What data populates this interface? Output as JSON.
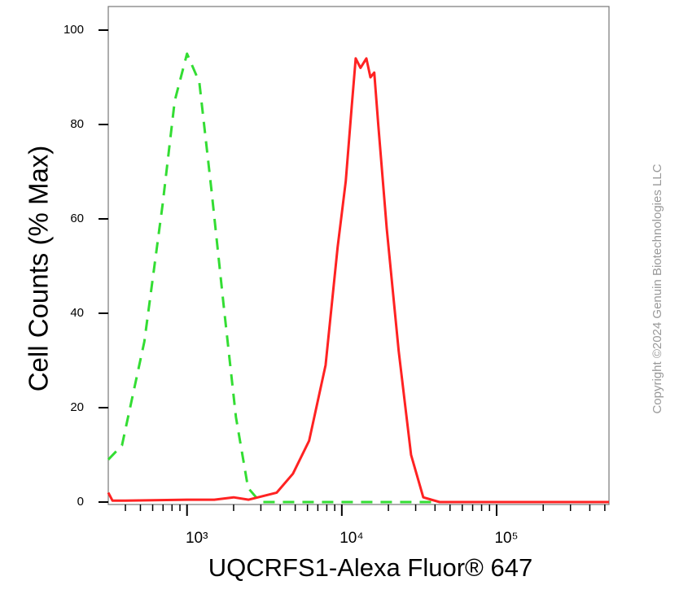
{
  "chart_data": {
    "type": "line",
    "y_label": "Cell Counts (% Max)",
    "x_label": "UQCRFS1-Alexa Fluor® 647",
    "copyright": "Copyright ©2024 Genuin Biotechnologies LLC",
    "x_log": true,
    "xlim": [
      310,
      532000
    ],
    "ylim": [
      0,
      105
    ],
    "xticks": [
      {
        "value": 1000,
        "label": "10³"
      },
      {
        "value": 10000,
        "label": "10⁴"
      },
      {
        "value": 100000,
        "label": "10⁵"
      }
    ],
    "x_minor_ticks": [
      400,
      500,
      600,
      700,
      800,
      900,
      2000,
      3000,
      4000,
      5000,
      6000,
      7000,
      8000,
      9000,
      20000,
      30000,
      40000,
      50000,
      60000,
      70000,
      80000,
      90000,
      200000,
      300000,
      400000,
      500000
    ],
    "yticks": [
      0,
      20,
      40,
      60,
      80,
      100
    ],
    "series": [
      {
        "color": "#33dd33",
        "dashed": true,
        "x": [
          310,
          380,
          530,
          695,
          833,
          1000,
          1200,
          1440,
          1720,
          2070,
          2480,
          2970,
          532000
        ],
        "values": [
          9,
          12,
          34,
          63,
          85,
          95,
          89,
          66,
          42,
          18,
          3,
          0,
          0
        ]
      },
      {
        "color": "#ff2222",
        "dashed": false,
        "x": [
          310,
          330,
          400,
          1000,
          1500,
          2000,
          2500,
          3800,
          4830,
          6150,
          7850,
          9400,
          10600,
          11600,
          12300,
          13200,
          14400,
          15300,
          16200,
          17200,
          19500,
          23300,
          28000,
          33600,
          42800,
          532000
        ],
        "values": [
          2,
          0.3,
          0.3,
          0.5,
          0.5,
          1,
          0.5,
          2,
          6,
          13,
          29,
          54,
          68,
          84,
          94,
          92,
          94,
          90,
          91,
          80,
          58,
          32,
          10,
          1,
          0,
          0
        ]
      }
    ]
  }
}
